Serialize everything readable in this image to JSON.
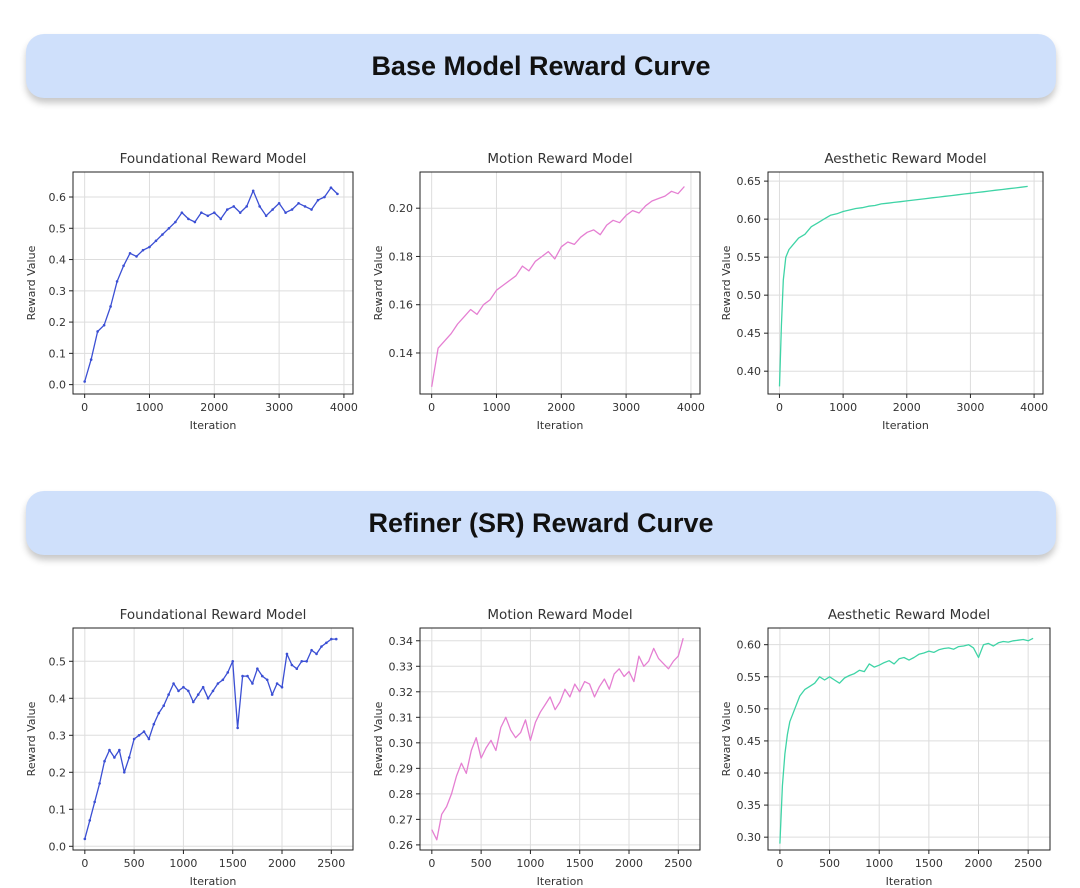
{
  "sections": [
    {
      "title": "Base Model Reward Curve"
    },
    {
      "title": "Refiner (SR) Reward Curve"
    }
  ],
  "colors": {
    "foundational": "#3b4fd4",
    "motion": "#e57fd2",
    "aesthetic": "#3fd4a6",
    "banner": "#cfe0fb"
  },
  "chart_data": [
    {
      "type": "line",
      "section": "Base Model Reward Curve",
      "title": "Foundational Reward Model",
      "xlabel": "Iteration",
      "ylabel": "Reward Value",
      "color": "foundational",
      "markers": true,
      "xlim": [
        -180,
        4140
      ],
      "ylim": [
        -0.03,
        0.68
      ],
      "xticks": [
        0,
        1000,
        2000,
        3000,
        4000
      ],
      "yticks": [
        0.0,
        0.1,
        0.2,
        0.3,
        0.4,
        0.5,
        0.6
      ],
      "xtick_labels": [
        "0",
        "1000",
        "2000",
        "3000",
        "4000"
      ],
      "ytick_labels": [
        "0.0",
        "0.1",
        "0.2",
        "0.3",
        "0.4",
        "0.5",
        "0.6"
      ],
      "x": [
        0,
        100,
        200,
        300,
        400,
        500,
        600,
        700,
        800,
        900,
        1000,
        1100,
        1200,
        1300,
        1400,
        1500,
        1600,
        1700,
        1800,
        1900,
        2000,
        2100,
        2200,
        2300,
        2400,
        2500,
        2600,
        2700,
        2800,
        2900,
        3000,
        3100,
        3200,
        3300,
        3400,
        3500,
        3600,
        3700,
        3800,
        3900
      ],
      "y": [
        0.01,
        0.08,
        0.17,
        0.19,
        0.25,
        0.33,
        0.38,
        0.42,
        0.41,
        0.43,
        0.44,
        0.46,
        0.48,
        0.5,
        0.52,
        0.55,
        0.53,
        0.52,
        0.55,
        0.54,
        0.55,
        0.53,
        0.56,
        0.57,
        0.55,
        0.57,
        0.62,
        0.57,
        0.54,
        0.56,
        0.58,
        0.55,
        0.56,
        0.58,
        0.57,
        0.56,
        0.59,
        0.6,
        0.63,
        0.61
      ]
    },
    {
      "type": "line",
      "section": "Base Model Reward Curve",
      "title": "Motion Reward Model",
      "xlabel": "Iteration",
      "ylabel": "Reward Value",
      "color": "motion",
      "markers": false,
      "xlim": [
        -180,
        4140
      ],
      "ylim": [
        0.123,
        0.215
      ],
      "xticks": [
        0,
        1000,
        2000,
        3000,
        4000
      ],
      "yticks": [
        0.14,
        0.16,
        0.18,
        0.2
      ],
      "xtick_labels": [
        "0",
        "1000",
        "2000",
        "3000",
        "4000"
      ],
      "ytick_labels": [
        "0.14",
        "0.16",
        "0.18",
        "0.20"
      ],
      "x": [
        0,
        100,
        200,
        300,
        400,
        500,
        600,
        700,
        800,
        900,
        1000,
        1100,
        1200,
        1300,
        1400,
        1500,
        1600,
        1700,
        1800,
        1900,
        2000,
        2100,
        2200,
        2300,
        2400,
        2500,
        2600,
        2700,
        2800,
        2900,
        3000,
        3100,
        3200,
        3300,
        3400,
        3500,
        3600,
        3700,
        3800,
        3900
      ],
      "y": [
        0.126,
        0.142,
        0.145,
        0.148,
        0.152,
        0.155,
        0.158,
        0.156,
        0.16,
        0.162,
        0.166,
        0.168,
        0.17,
        0.172,
        0.176,
        0.174,
        0.178,
        0.18,
        0.182,
        0.179,
        0.184,
        0.186,
        0.185,
        0.188,
        0.19,
        0.191,
        0.189,
        0.193,
        0.195,
        0.194,
        0.197,
        0.199,
        0.198,
        0.201,
        0.203,
        0.204,
        0.205,
        0.207,
        0.206,
        0.209
      ]
    },
    {
      "type": "line",
      "section": "Base Model Reward Curve",
      "title": "Aesthetic Reward Model",
      "xlabel": "Iteration",
      "ylabel": "Reward Value",
      "color": "aesthetic",
      "markers": false,
      "xlim": [
        -180,
        4140
      ],
      "ylim": [
        0.37,
        0.662
      ],
      "xticks": [
        0,
        1000,
        2000,
        3000,
        4000
      ],
      "yticks": [
        0.4,
        0.45,
        0.5,
        0.55,
        0.6,
        0.65
      ],
      "xtick_labels": [
        "0",
        "1000",
        "2000",
        "3000",
        "4000"
      ],
      "ytick_labels": [
        "0.40",
        "0.45",
        "0.50",
        "0.55",
        "0.60",
        "0.65"
      ],
      "x": [
        0,
        30,
        60,
        100,
        150,
        200,
        300,
        400,
        500,
        600,
        700,
        800,
        900,
        1000,
        1100,
        1200,
        1300,
        1400,
        1500,
        1600,
        1700,
        1800,
        1900,
        2000,
        2100,
        2200,
        2300,
        2400,
        2500,
        2600,
        2700,
        2800,
        2900,
        3000,
        3100,
        3200,
        3300,
        3400,
        3500,
        3600,
        3700,
        3800,
        3900
      ],
      "y": [
        0.38,
        0.46,
        0.52,
        0.55,
        0.56,
        0.565,
        0.575,
        0.58,
        0.59,
        0.595,
        0.6,
        0.605,
        0.607,
        0.61,
        0.612,
        0.614,
        0.615,
        0.617,
        0.618,
        0.62,
        0.621,
        0.622,
        0.623,
        0.624,
        0.625,
        0.626,
        0.627,
        0.628,
        0.629,
        0.63,
        0.631,
        0.632,
        0.633,
        0.634,
        0.635,
        0.636,
        0.637,
        0.638,
        0.639,
        0.64,
        0.641,
        0.642,
        0.643
      ]
    },
    {
      "type": "line",
      "section": "Refiner (SR) Reward Curve",
      "title": "Foundational Reward Model",
      "xlabel": "Iteration",
      "ylabel": "Reward Value",
      "color": "foundational",
      "markers": true,
      "xlim": [
        -120,
        2720
      ],
      "ylim": [
        -0.01,
        0.59
      ],
      "xticks": [
        0,
        500,
        1000,
        1500,
        2000,
        2500
      ],
      "yticks": [
        0.0,
        0.1,
        0.2,
        0.3,
        0.4,
        0.5
      ],
      "xtick_labels": [
        "0",
        "500",
        "1000",
        "1500",
        "2000",
        "2500"
      ],
      "ytick_labels": [
        "0.0",
        "0.1",
        "0.2",
        "0.3",
        "0.4",
        "0.5"
      ],
      "x": [
        0,
        50,
        100,
        150,
        200,
        250,
        300,
        350,
        400,
        450,
        500,
        550,
        600,
        650,
        700,
        750,
        800,
        850,
        900,
        950,
        1000,
        1050,
        1100,
        1150,
        1200,
        1250,
        1300,
        1350,
        1400,
        1450,
        1500,
        1550,
        1600,
        1650,
        1700,
        1750,
        1800,
        1850,
        1900,
        1950,
        2000,
        2050,
        2100,
        2150,
        2200,
        2250,
        2300,
        2350,
        2400,
        2450,
        2500,
        2550
      ],
      "y": [
        0.02,
        0.07,
        0.12,
        0.17,
        0.23,
        0.26,
        0.24,
        0.26,
        0.2,
        0.24,
        0.29,
        0.3,
        0.31,
        0.29,
        0.33,
        0.36,
        0.38,
        0.41,
        0.44,
        0.42,
        0.43,
        0.42,
        0.39,
        0.41,
        0.43,
        0.4,
        0.42,
        0.44,
        0.45,
        0.47,
        0.5,
        0.32,
        0.46,
        0.46,
        0.44,
        0.48,
        0.46,
        0.45,
        0.41,
        0.44,
        0.43,
        0.52,
        0.49,
        0.48,
        0.5,
        0.5,
        0.53,
        0.52,
        0.54,
        0.55,
        0.56,
        0.56
      ]
    },
    {
      "type": "line",
      "section": "Refiner (SR) Reward Curve",
      "title": "Motion Reward Model",
      "xlabel": "Iteration",
      "ylabel": "Reward Value",
      "color": "motion",
      "markers": false,
      "xlim": [
        -120,
        2720
      ],
      "ylim": [
        0.258,
        0.345
      ],
      "xticks": [
        0,
        500,
        1000,
        1500,
        2000,
        2500
      ],
      "yticks": [
        0.26,
        0.27,
        0.28,
        0.29,
        0.3,
        0.31,
        0.32,
        0.33,
        0.34
      ],
      "xtick_labels": [
        "0",
        "500",
        "1000",
        "1500",
        "2000",
        "2500"
      ],
      "ytick_labels": [
        "0.26",
        "0.27",
        "0.28",
        "0.29",
        "0.30",
        "0.31",
        "0.32",
        "0.33",
        "0.34"
      ],
      "x": [
        0,
        50,
        100,
        150,
        200,
        250,
        300,
        350,
        400,
        450,
        500,
        550,
        600,
        650,
        700,
        750,
        800,
        850,
        900,
        950,
        1000,
        1050,
        1100,
        1150,
        1200,
        1250,
        1300,
        1350,
        1400,
        1450,
        1500,
        1550,
        1600,
        1650,
        1700,
        1750,
        1800,
        1850,
        1900,
        1950,
        2000,
        2050,
        2100,
        2150,
        2200,
        2250,
        2300,
        2350,
        2400,
        2450,
        2500,
        2550
      ],
      "y": [
        0.266,
        0.262,
        0.272,
        0.275,
        0.28,
        0.287,
        0.292,
        0.288,
        0.297,
        0.302,
        0.294,
        0.298,
        0.301,
        0.297,
        0.306,
        0.31,
        0.305,
        0.302,
        0.304,
        0.309,
        0.301,
        0.308,
        0.312,
        0.315,
        0.318,
        0.313,
        0.316,
        0.321,
        0.318,
        0.323,
        0.32,
        0.324,
        0.323,
        0.318,
        0.322,
        0.325,
        0.321,
        0.327,
        0.329,
        0.326,
        0.328,
        0.324,
        0.334,
        0.33,
        0.332,
        0.337,
        0.333,
        0.331,
        0.329,
        0.332,
        0.334,
        0.341
      ]
    },
    {
      "type": "line",
      "section": "Refiner (SR) Reward Curve",
      "title": "Aesthetic Reward Model",
      "xlabel": "Iteration",
      "ylabel": "Reward Value",
      "color": "aesthetic",
      "markers": false,
      "xlim": [
        -120,
        2720
      ],
      "ylim": [
        0.28,
        0.626
      ],
      "xticks": [
        0,
        500,
        1000,
        1500,
        2000,
        2500
      ],
      "yticks": [
        0.3,
        0.35,
        0.4,
        0.45,
        0.5,
        0.55,
        0.6
      ],
      "xtick_labels": [
        "0",
        "500",
        "1000",
        "1500",
        "2000",
        "2500"
      ],
      "ytick_labels": [
        "0.30",
        "0.35",
        "0.40",
        "0.45",
        "0.50",
        "0.55",
        "0.60"
      ],
      "x": [
        0,
        25,
        50,
        75,
        100,
        150,
        200,
        250,
        300,
        350,
        400,
        450,
        500,
        550,
        600,
        650,
        700,
        750,
        800,
        850,
        900,
        950,
        1000,
        1050,
        1100,
        1150,
        1200,
        1250,
        1300,
        1350,
        1400,
        1450,
        1500,
        1550,
        1600,
        1650,
        1700,
        1750,
        1800,
        1850,
        1900,
        1950,
        2000,
        2050,
        2100,
        2150,
        2200,
        2250,
        2300,
        2350,
        2400,
        2450,
        2500,
        2550
      ],
      "y": [
        0.29,
        0.38,
        0.43,
        0.46,
        0.48,
        0.5,
        0.52,
        0.53,
        0.535,
        0.54,
        0.55,
        0.545,
        0.55,
        0.545,
        0.54,
        0.548,
        0.552,
        0.555,
        0.56,
        0.558,
        0.57,
        0.565,
        0.568,
        0.572,
        0.575,
        0.57,
        0.578,
        0.58,
        0.576,
        0.58,
        0.585,
        0.587,
        0.59,
        0.588,
        0.592,
        0.594,
        0.595,
        0.593,
        0.597,
        0.598,
        0.6,
        0.595,
        0.58,
        0.6,
        0.602,
        0.598,
        0.603,
        0.605,
        0.604,
        0.606,
        0.607,
        0.608,
        0.606,
        0.61
      ]
    }
  ]
}
